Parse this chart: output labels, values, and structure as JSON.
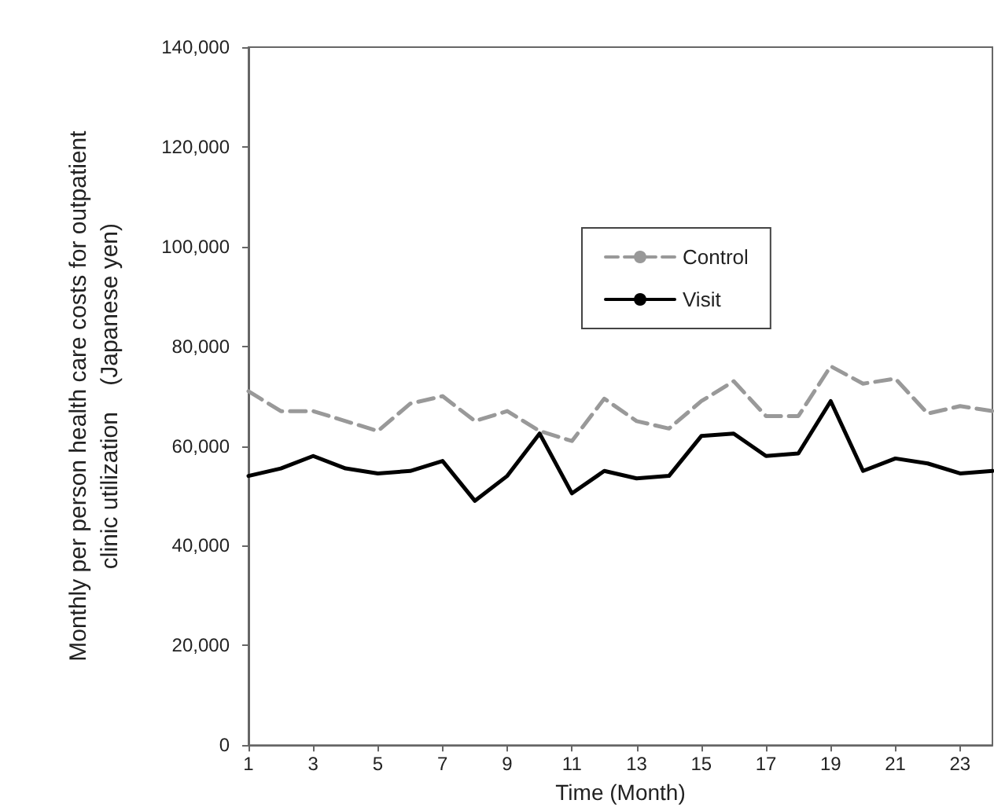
{
  "chart_data": {
    "type": "line",
    "xlabel": "Time (Month)",
    "ylabel": "Monthly per person health care costs for outpatient\nclinic utilization    (Japanese yen)",
    "x": [
      1,
      2,
      3,
      4,
      5,
      6,
      7,
      8,
      9,
      10,
      11,
      12,
      13,
      14,
      15,
      16,
      17,
      18,
      19,
      20,
      21,
      22,
      23,
      24
    ],
    "series": [
      {
        "name": "Control",
        "color": "#999999",
        "line_style": "dashed",
        "values": [
          71000,
          67000,
          67000,
          65000,
          63000,
          68500,
          70000,
          65000,
          67000,
          63000,
          61000,
          69500,
          65000,
          63500,
          69000,
          73000,
          66000,
          66000,
          76000,
          72500,
          73500,
          66500,
          68000,
          67000
        ]
      },
      {
        "name": "Visit",
        "color": "#000000",
        "line_style": "solid",
        "values": [
          54000,
          55500,
          58000,
          55500,
          54500,
          55000,
          57000,
          49000,
          54000,
          62500,
          50500,
          55000,
          53500,
          54000,
          62000,
          62500,
          58000,
          58500,
          69000,
          55000,
          57500,
          56500,
          54500,
          55000
        ]
      }
    ],
    "xlim": [
      1,
      24
    ],
    "xticks": [
      1,
      3,
      5,
      7,
      9,
      11,
      13,
      15,
      17,
      19,
      21,
      23
    ],
    "ylim": [
      0,
      140000
    ],
    "yticks": [
      0,
      {
        "value": 20000,
        "label": "20,000"
      },
      {
        "value": 40000,
        "label": "40,000"
      },
      {
        "value": 60000,
        "label": "60,000"
      },
      {
        "value": 80000,
        "label": "80,000"
      },
      {
        "value": 100000,
        "label": "100,000"
      },
      {
        "value": 120000,
        "label": "120,000"
      },
      {
        "value": 140000,
        "label": "140,000"
      }
    ],
    "grid": false,
    "legend": "top right",
    "marker": "none"
  }
}
